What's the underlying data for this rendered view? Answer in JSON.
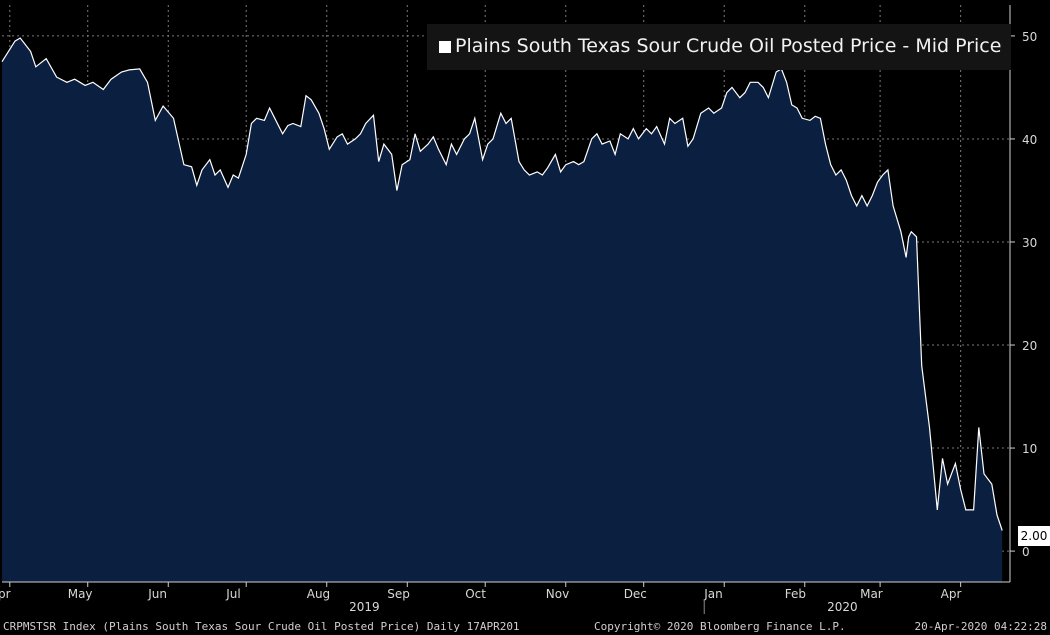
{
  "chart_data": {
    "type": "area",
    "title": "Plains South Texas Sour Crude Oil Posted Price - Mid Price",
    "ylim": [
      -3,
      53
    ],
    "yticks": [
      0,
      10,
      20,
      30,
      40,
      50
    ],
    "xlim": [
      "2019-03-29",
      "2020-04-20"
    ],
    "x_tick_labels": [
      {
        "label": "Apr",
        "date": "2019-04-01"
      },
      {
        "label": "May",
        "date": "2019-05-01"
      },
      {
        "label": "Jun",
        "date": "2019-06-01"
      },
      {
        "label": "Jul",
        "date": "2019-07-01"
      },
      {
        "label": "Aug",
        "date": "2019-08-01"
      },
      {
        "label": "Sep",
        "date": "2019-09-01"
      },
      {
        "label": "Oct",
        "date": "2019-10-01"
      },
      {
        "label": "Nov",
        "date": "2019-11-01"
      },
      {
        "label": "Dec",
        "date": "2019-12-01"
      },
      {
        "label": "Jan",
        "date": "2020-01-01"
      },
      {
        "label": "Feb",
        "date": "2020-02-01"
      },
      {
        "label": "Mar",
        "date": "2020-03-01"
      },
      {
        "label": "Apr",
        "date": "2020-04-01"
      }
    ],
    "year_labels": [
      {
        "label": "2019",
        "date": "2019-08-15"
      },
      {
        "label": "2020",
        "date": "2020-02-15"
      }
    ],
    "last_value_label": "2.00",
    "grid": true,
    "legend": "top-right",
    "colors": {
      "line": "#ffffff",
      "fill": "#0b2040",
      "background": "#000000",
      "grid": "#7a7a7a"
    },
    "series": [
      {
        "name": "Plains South Texas Sour Crude Oil Posted Price - Mid Price",
        "points": [
          [
            "2019-03-29",
            47.5
          ],
          [
            "2019-04-03",
            49.5
          ],
          [
            "2019-04-05",
            49.8
          ],
          [
            "2019-04-09",
            48.5
          ],
          [
            "2019-04-11",
            47.0
          ],
          [
            "2019-04-15",
            47.8
          ],
          [
            "2019-04-19",
            46.0
          ],
          [
            "2019-04-23",
            45.5
          ],
          [
            "2019-04-26",
            45.8
          ],
          [
            "2019-04-30",
            45.2
          ],
          [
            "2019-05-03",
            45.5
          ],
          [
            "2019-05-07",
            44.8
          ],
          [
            "2019-05-10",
            45.8
          ],
          [
            "2019-05-14",
            46.5
          ],
          [
            "2019-05-17",
            46.7
          ],
          [
            "2019-05-21",
            46.8
          ],
          [
            "2019-05-24",
            45.5
          ],
          [
            "2019-05-27",
            41.8
          ],
          [
            "2019-05-30",
            43.2
          ],
          [
            "2019-06-03",
            42.0
          ],
          [
            "2019-06-07",
            37.5
          ],
          [
            "2019-06-10",
            37.3
          ],
          [
            "2019-06-12",
            35.5
          ],
          [
            "2019-06-14",
            37.0
          ],
          [
            "2019-06-17",
            38.0
          ],
          [
            "2019-06-19",
            36.5
          ],
          [
            "2019-06-21",
            37.0
          ],
          [
            "2019-06-24",
            35.3
          ],
          [
            "2019-06-26",
            36.5
          ],
          [
            "2019-06-28",
            36.2
          ],
          [
            "2019-07-01",
            38.5
          ],
          [
            "2019-07-03",
            41.5
          ],
          [
            "2019-07-05",
            42.0
          ],
          [
            "2019-07-08",
            41.8
          ],
          [
            "2019-07-10",
            43.0
          ],
          [
            "2019-07-12",
            42.0
          ],
          [
            "2019-07-15",
            40.5
          ],
          [
            "2019-07-17",
            41.3
          ],
          [
            "2019-07-19",
            41.5
          ],
          [
            "2019-07-22",
            41.2
          ],
          [
            "2019-07-24",
            44.2
          ],
          [
            "2019-07-26",
            43.8
          ],
          [
            "2019-07-29",
            42.5
          ],
          [
            "2019-07-31",
            41.0
          ],
          [
            "2019-08-02",
            39.0
          ],
          [
            "2019-08-05",
            40.2
          ],
          [
            "2019-08-07",
            40.5
          ],
          [
            "2019-08-09",
            39.5
          ],
          [
            "2019-08-12",
            40.0
          ],
          [
            "2019-08-14",
            40.5
          ],
          [
            "2019-08-16",
            41.5
          ],
          [
            "2019-08-19",
            42.3
          ],
          [
            "2019-08-21",
            37.8
          ],
          [
            "2019-08-23",
            39.5
          ],
          [
            "2019-08-26",
            38.5
          ],
          [
            "2019-08-28",
            35.0
          ],
          [
            "2019-08-30",
            37.5
          ],
          [
            "2019-09-02",
            38.0
          ],
          [
            "2019-09-04",
            40.5
          ],
          [
            "2019-09-06",
            38.8
          ],
          [
            "2019-09-09",
            39.5
          ],
          [
            "2019-09-11",
            40.2
          ],
          [
            "2019-09-13",
            39.0
          ],
          [
            "2019-09-16",
            37.5
          ],
          [
            "2019-09-18",
            39.5
          ],
          [
            "2019-09-20",
            38.5
          ],
          [
            "2019-09-23",
            40.0
          ],
          [
            "2019-09-25",
            40.5
          ],
          [
            "2019-09-27",
            42.0
          ],
          [
            "2019-09-30",
            38.0
          ],
          [
            "2019-10-02",
            39.5
          ],
          [
            "2019-10-04",
            40.0
          ],
          [
            "2019-10-07",
            42.5
          ],
          [
            "2019-10-09",
            41.5
          ],
          [
            "2019-10-11",
            42.0
          ],
          [
            "2019-10-14",
            37.8
          ],
          [
            "2019-10-16",
            37.0
          ],
          [
            "2019-10-18",
            36.5
          ],
          [
            "2019-10-21",
            36.8
          ],
          [
            "2019-10-23",
            36.5
          ],
          [
            "2019-10-25",
            37.2
          ],
          [
            "2019-10-28",
            38.5
          ],
          [
            "2019-10-30",
            36.8
          ],
          [
            "2019-11-01",
            37.5
          ],
          [
            "2019-11-04",
            37.8
          ],
          [
            "2019-11-06",
            37.5
          ],
          [
            "2019-11-08",
            37.8
          ],
          [
            "2019-11-11",
            40.0
          ],
          [
            "2019-11-13",
            40.5
          ],
          [
            "2019-11-15",
            39.5
          ],
          [
            "2019-11-18",
            39.8
          ],
          [
            "2019-11-20",
            38.5
          ],
          [
            "2019-11-22",
            40.5
          ],
          [
            "2019-11-25",
            40.0
          ],
          [
            "2019-11-27",
            41.0
          ],
          [
            "2019-11-29",
            40.0
          ],
          [
            "2019-12-02",
            41.0
          ],
          [
            "2019-12-04",
            40.5
          ],
          [
            "2019-12-06",
            41.2
          ],
          [
            "2019-12-09",
            39.5
          ],
          [
            "2019-12-11",
            42.0
          ],
          [
            "2019-12-13",
            41.5
          ],
          [
            "2019-12-16",
            42.0
          ],
          [
            "2019-12-18",
            39.3
          ],
          [
            "2019-12-20",
            40.0
          ],
          [
            "2019-12-23",
            42.5
          ],
          [
            "2019-12-26",
            43.0
          ],
          [
            "2019-12-28",
            42.5
          ],
          [
            "2019-12-31",
            43.0
          ],
          [
            "2020-01-02",
            44.5
          ],
          [
            "2020-01-04",
            45.0
          ],
          [
            "2020-01-07",
            44.0
          ],
          [
            "2020-01-09",
            44.5
          ],
          [
            "2020-01-11",
            45.5
          ],
          [
            "2020-01-14",
            45.5
          ],
          [
            "2020-01-16",
            45.0
          ],
          [
            "2020-01-18",
            44.0
          ],
          [
            "2020-01-21",
            46.5
          ],
          [
            "2020-01-23",
            46.8
          ],
          [
            "2020-01-25",
            45.5
          ],
          [
            "2020-01-27",
            43.3
          ],
          [
            "2020-01-29",
            43.0
          ],
          [
            "2020-01-31",
            42.0
          ],
          [
            "2020-02-03",
            41.8
          ],
          [
            "2020-02-05",
            42.2
          ],
          [
            "2020-02-07",
            42.0
          ],
          [
            "2020-02-09",
            39.5
          ],
          [
            "2020-02-11",
            37.5
          ],
          [
            "2020-02-13",
            36.5
          ],
          [
            "2020-02-15",
            37.0
          ],
          [
            "2020-02-17",
            36.0
          ],
          [
            "2020-02-19",
            34.5
          ],
          [
            "2020-02-21",
            33.5
          ],
          [
            "2020-02-23",
            34.5
          ],
          [
            "2020-02-25",
            33.5
          ],
          [
            "2020-02-27",
            34.5
          ],
          [
            "2020-02-29",
            35.8
          ],
          [
            "2020-03-02",
            36.5
          ],
          [
            "2020-03-04",
            37.0
          ],
          [
            "2020-03-06",
            33.5
          ],
          [
            "2020-03-09",
            31.0
          ],
          [
            "2020-03-11",
            28.5
          ],
          [
            "2020-03-12",
            30.5
          ],
          [
            "2020-03-13",
            31.0
          ],
          [
            "2020-03-15",
            30.5
          ],
          [
            "2020-03-17",
            18.0
          ],
          [
            "2020-03-20",
            12.0
          ],
          [
            "2020-03-23",
            4.0
          ],
          [
            "2020-03-25",
            9.0
          ],
          [
            "2020-03-27",
            6.5
          ],
          [
            "2020-03-30",
            8.5
          ],
          [
            "2020-04-01",
            6.0
          ],
          [
            "2020-04-03",
            4.0
          ],
          [
            "2020-04-06",
            4.0
          ],
          [
            "2020-04-08",
            12.0
          ],
          [
            "2020-04-10",
            7.5
          ],
          [
            "2020-04-13",
            6.5
          ],
          [
            "2020-04-15",
            3.5
          ],
          [
            "2020-04-17",
            2.0
          ]
        ]
      }
    ]
  },
  "footer": {
    "left": "CRPMSTSR Index (Plains South Texas Sour Crude Oil  Posted Price)  Daily 17APR201",
    "middle": "Copyright© 2020 Bloomberg Finance L.P.",
    "right": "20-Apr-2020 04:22:28"
  }
}
